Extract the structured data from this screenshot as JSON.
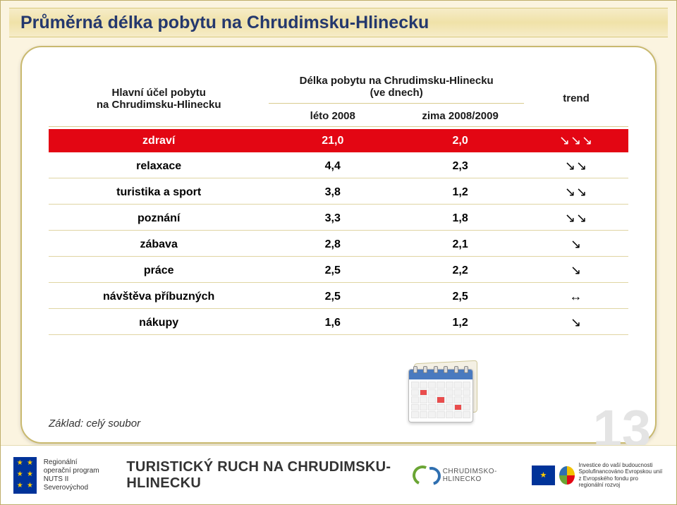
{
  "title": "Průměrná délka pobytu na Chrudimsku-Hlinecku",
  "table": {
    "col0_header_line1": "Hlavní účel pobytu",
    "col0_header_line2": "na Chrudimsku-Hlinecku",
    "col12_header_line1": "Délka pobytu na Chrudimsku-Hlinecku",
    "col12_header_line2": "(ve dnech)",
    "sub_leto": "léto 2008",
    "sub_zima": "zima 2008/2009",
    "sub_trend": "trend",
    "rows": [
      {
        "label": "zdraví",
        "leto": "21,0",
        "zima": "2,0",
        "trend": "↘↘↘",
        "highlight": true
      },
      {
        "label": "relaxace",
        "leto": "4,4",
        "zima": "2,3",
        "trend": "↘↘",
        "highlight": false
      },
      {
        "label": "turistika a sport",
        "leto": "3,8",
        "zima": "1,2",
        "trend": "↘↘",
        "highlight": false
      },
      {
        "label": "poznání",
        "leto": "3,3",
        "zima": "1,8",
        "trend": "↘↘",
        "highlight": false
      },
      {
        "label": "zábava",
        "leto": "2,8",
        "zima": "2,1",
        "trend": "↘",
        "highlight": false
      },
      {
        "label": "práce",
        "leto": "2,5",
        "zima": "2,2",
        "trend": "↘",
        "highlight": false
      },
      {
        "label": "návštěva příbuzných",
        "leto": "2,5",
        "zima": "2,5",
        "trend": "↔",
        "highlight": false
      },
      {
        "label": "nákupy",
        "leto": "1,6",
        "zima": "1,2",
        "trend": "↘",
        "highlight": false
      }
    ]
  },
  "basis_note": "Základ: celý soubor",
  "page_number": "13",
  "footer": {
    "rop_line1": "Regionální",
    "rop_line2": "operační program",
    "rop_line3": "NUTS II Severovýchod",
    "title": "TURISTICKÝ RUCH NA CHRUDIMSKU-HLINECKU",
    "ch_logo_text": "CHRUDIMSKO-HLINECKO",
    "eu_line1": "Investice do vaší budoucnosti",
    "eu_line2": "Spolufinancováno Evropskou unií",
    "eu_line3": "z Evropského fondu pro regionální rozvoj"
  },
  "colors": {
    "slide_bg": "#fbf4e0",
    "title_text": "#24386e",
    "highlight_row_bg": "#e30613",
    "highlight_row_fg": "#ffffff",
    "row_border": "#e0d5a3",
    "page_num": "#e4e4e4"
  }
}
